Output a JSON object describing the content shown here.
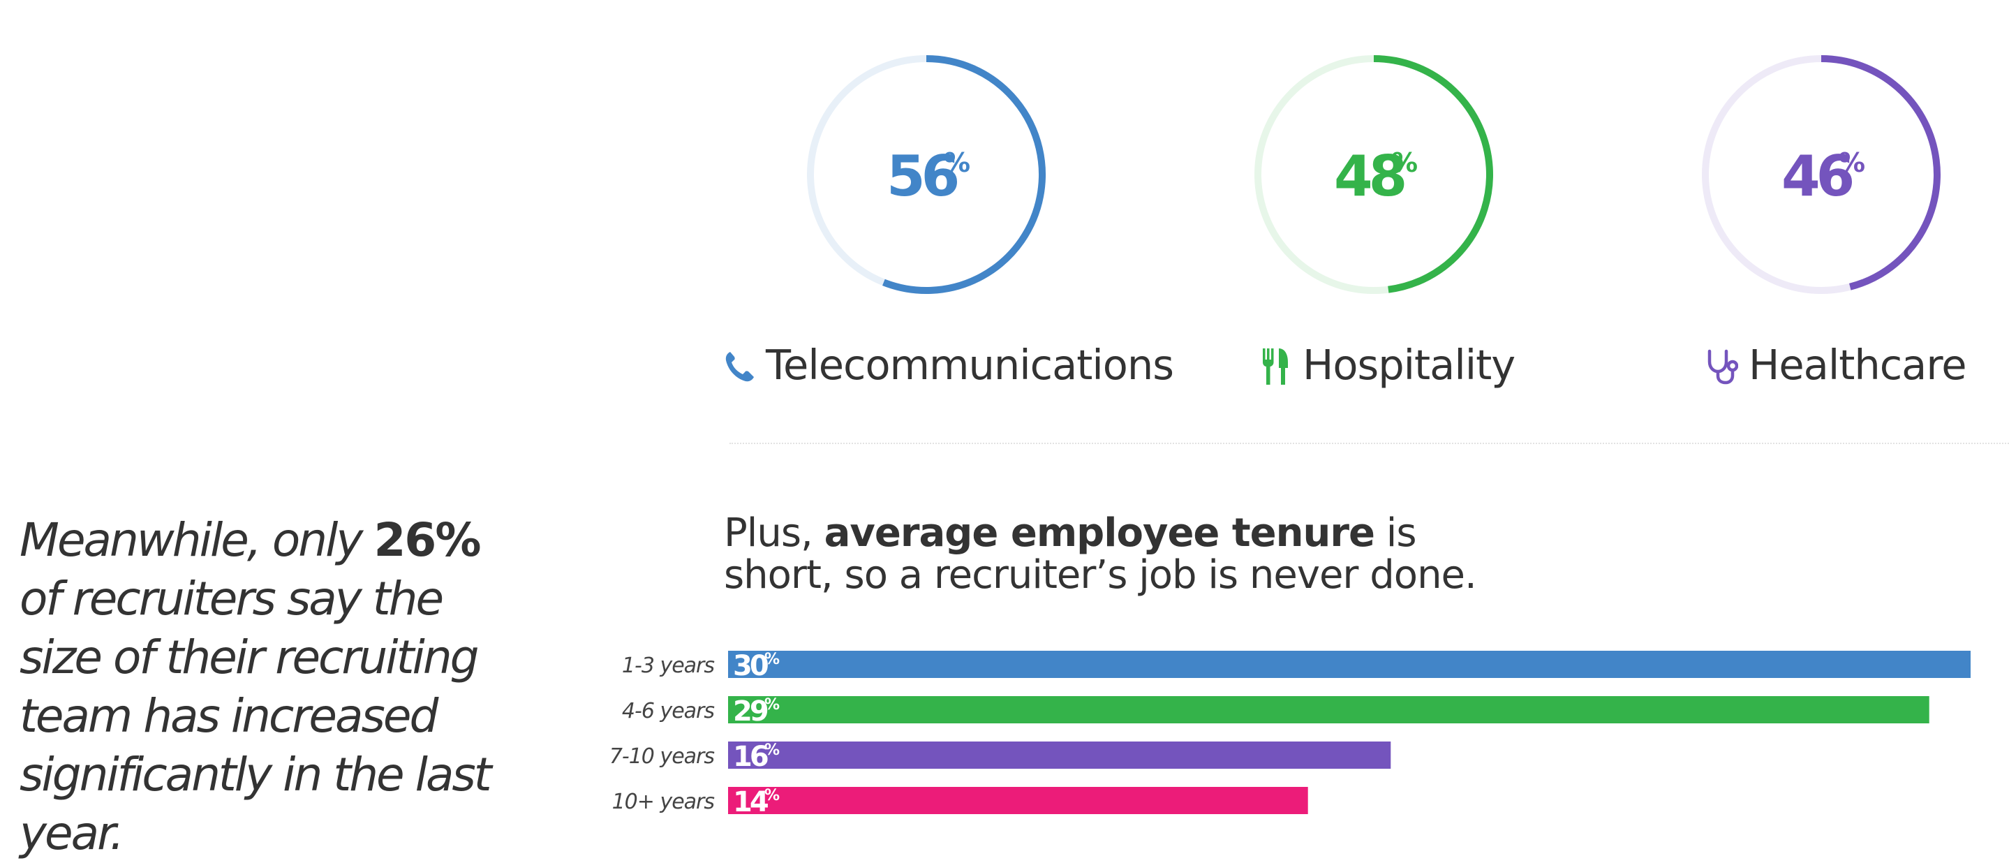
{
  "industries_chart": {
    "chart_data": {
      "type": "pie",
      "items": [
        {
          "label": "Telecommunications",
          "value": 56,
          "color": "#4285c8",
          "icon": "phone-icon"
        },
        {
          "label": "Hospitality",
          "value": 48,
          "color": "#34b34a",
          "icon": "cutlery-icon"
        },
        {
          "label": "Healthcare",
          "value": 46,
          "color": "#7454bd",
          "icon": "stethoscope-icon"
        }
      ],
      "value_suffix": "%"
    }
  },
  "quote": {
    "before": "Meanwhile, only ",
    "highlight": "26%",
    "after": " of recruiters say the size of their recruiting team has increased significantly in the last year."
  },
  "tenure": {
    "heading_before": "Plus, ",
    "heading_bold": "average employee tenure",
    "heading_after": " is short, so a recruiter’s job is never done.",
    "chart_data": {
      "type": "bar",
      "orientation": "horizontal",
      "categories": [
        "1-3 years",
        "4-6 years",
        "7-10 years",
        "10+ years"
      ],
      "values": [
        30,
        29,
        16,
        14
      ],
      "colors": [
        "#4285c8",
        "#34b34a",
        "#7454bd",
        "#ec1c79"
      ],
      "value_suffix": "%"
    }
  }
}
